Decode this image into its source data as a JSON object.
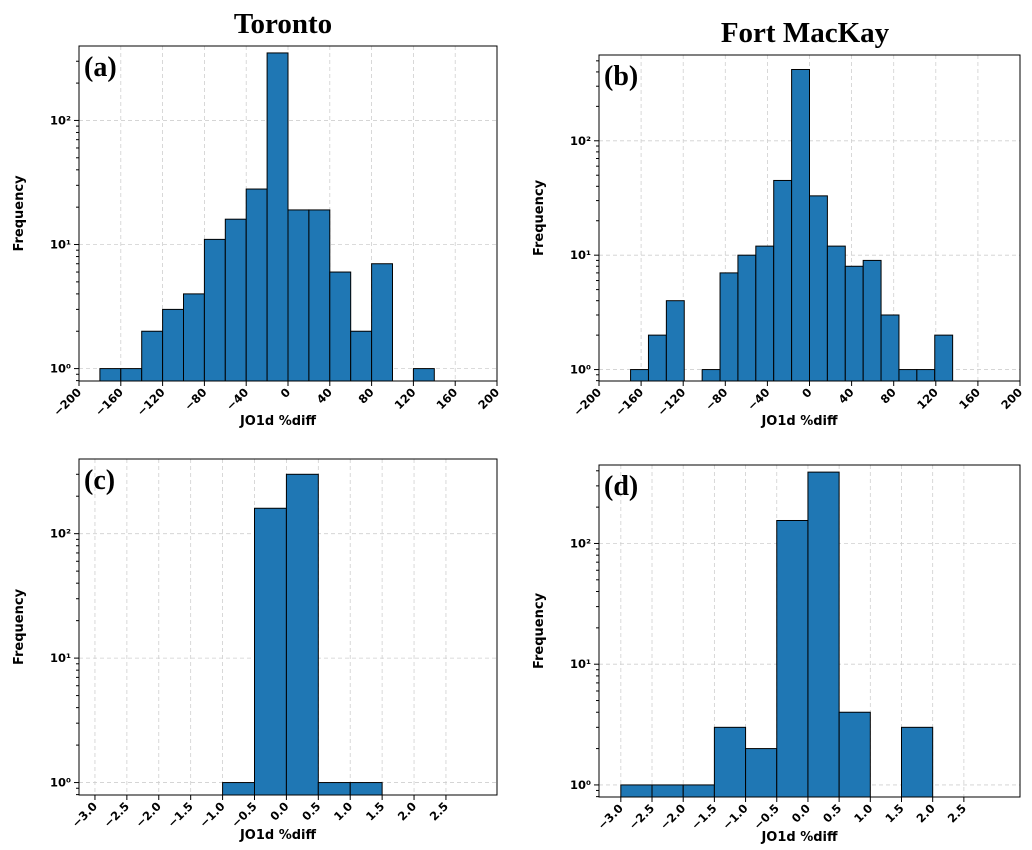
{
  "column_titles": [
    "Toronto",
    "Fort MacKay"
  ],
  "chart_data": [
    {
      "type": "bar",
      "panel_label": "(a)",
      "xlabel": "JO1d %diff",
      "ylabel": "Frequency",
      "y_scale": "log",
      "xlim": [
        -200,
        200
      ],
      "ylim_exp": [
        -0.1,
        2.6
      ],
      "xticks": [
        -200,
        -160,
        -120,
        -80,
        -40,
        0,
        40,
        80,
        120,
        160,
        200
      ],
      "xtick_labels": [
        "−200",
        "−160",
        "−120",
        "−80",
        "−40",
        "0",
        "40",
        "80",
        "120",
        "160",
        "200"
      ],
      "yticks": [
        0,
        1,
        2
      ],
      "ytick_labels": [
        "10⁰",
        "10¹",
        "10²"
      ],
      "grid": true,
      "bins": [
        {
          "x0": -180,
          "x1": -160,
          "count": 1
        },
        {
          "x0": -160,
          "x1": -140,
          "count": 1
        },
        {
          "x0": -140,
          "x1": -120,
          "count": 2
        },
        {
          "x0": -120,
          "x1": -100,
          "count": 3
        },
        {
          "x0": -100,
          "x1": -80,
          "count": 4
        },
        {
          "x0": -80,
          "x1": -60,
          "count": 11
        },
        {
          "x0": -60,
          "x1": -40,
          "count": 16
        },
        {
          "x0": -40,
          "x1": -20,
          "count": 28
        },
        {
          "x0": -20,
          "x1": 0,
          "count": 350
        },
        {
          "x0": 0,
          "x1": 20,
          "count": 19
        },
        {
          "x0": 20,
          "x1": 40,
          "count": 19
        },
        {
          "x0": 40,
          "x1": 60,
          "count": 6
        },
        {
          "x0": 60,
          "x1": 80,
          "count": 2
        },
        {
          "x0": 80,
          "x1": 100,
          "count": 7
        },
        {
          "x0": 120,
          "x1": 140,
          "count": 1
        }
      ]
    },
    {
      "type": "bar",
      "panel_label": "(b)",
      "xlabel": "JO1d %diff",
      "ylabel": "Frequency",
      "y_scale": "log",
      "xlim": [
        -200,
        200
      ],
      "ylim_exp": [
        -0.1,
        2.75
      ],
      "xticks": [
        -200,
        -160,
        -120,
        -80,
        -40,
        0,
        40,
        80,
        120,
        160,
        200
      ],
      "xtick_labels": [
        "−200",
        "−160",
        "−120",
        "−80",
        "−40",
        "0",
        "40",
        "80",
        "120",
        "160",
        "200"
      ],
      "yticks": [
        0,
        1,
        2
      ],
      "ytick_labels": [
        "10⁰",
        "10¹",
        "10²"
      ],
      "grid": true,
      "bins": [
        {
          "x0": -170,
          "x1": -153,
          "count": 1
        },
        {
          "x0": -153,
          "x1": -136,
          "count": 2
        },
        {
          "x0": -136,
          "x1": -119,
          "count": 4
        },
        {
          "x0": -102,
          "x1": -85,
          "count": 1
        },
        {
          "x0": -85,
          "x1": -68,
          "count": 7
        },
        {
          "x0": -68,
          "x1": -51,
          "count": 10
        },
        {
          "x0": -51,
          "x1": -34,
          "count": 12
        },
        {
          "x0": -34,
          "x1": -17,
          "count": 45
        },
        {
          "x0": -17,
          "x1": 0,
          "count": 420
        },
        {
          "x0": 0,
          "x1": 17,
          "count": 33
        },
        {
          "x0": 17,
          "x1": 34,
          "count": 12
        },
        {
          "x0": 34,
          "x1": 51,
          "count": 8
        },
        {
          "x0": 51,
          "x1": 68,
          "count": 9
        },
        {
          "x0": 68,
          "x1": 85,
          "count": 3
        },
        {
          "x0": 85,
          "x1": 102,
          "count": 1
        },
        {
          "x0": 102,
          "x1": 119,
          "count": 1
        },
        {
          "x0": 119,
          "x1": 136,
          "count": 2
        }
      ]
    },
    {
      "type": "bar",
      "panel_label": "(c)",
      "xlabel": "JO1d %diff",
      "ylabel": "Frequency",
      "y_scale": "log",
      "xlim": [
        -3.25,
        3.3
      ],
      "ylim_exp": [
        -0.1,
        2.6
      ],
      "xticks": [
        -3.0,
        -2.5,
        -2.0,
        -1.5,
        -1.0,
        -0.5,
        0.0,
        0.5,
        1.0,
        1.5,
        2.0,
        2.5
      ],
      "xtick_labels": [
        "−3.0",
        "−2.5",
        "−2.0",
        "−1.5",
        "−1.0",
        "−0.5",
        "0.0",
        "0.5",
        "1.0",
        "1.5",
        "2.0",
        "2.5"
      ],
      "yticks": [
        0,
        1,
        2
      ],
      "ytick_labels": [
        "10⁰",
        "10¹",
        "10²"
      ],
      "grid": true,
      "bins": [
        {
          "x0": -1.0,
          "x1": -0.5,
          "count": 1
        },
        {
          "x0": -0.5,
          "x1": 0.0,
          "count": 160
        },
        {
          "x0": 0.0,
          "x1": 0.5,
          "count": 300
        },
        {
          "x0": 0.5,
          "x1": 1.0,
          "count": 1
        },
        {
          "x0": 1.0,
          "x1": 1.5,
          "count": 1
        }
      ]
    },
    {
      "type": "bar",
      "panel_label": "(d)",
      "xlabel": "JO1d %diff",
      "ylabel": "Frequency",
      "y_scale": "log",
      "xlim": [
        -3.35,
        3.4
      ],
      "ylim_exp": [
        -0.1,
        2.65
      ],
      "xticks": [
        -3.0,
        -2.5,
        -2.0,
        -1.5,
        -1.0,
        -0.5,
        0.0,
        0.5,
        1.0,
        1.5,
        2.0,
        2.5
      ],
      "xtick_labels": [
        "−3.0",
        "−2.5",
        "−2.0",
        "−1.5",
        "−1.0",
        "−0.5",
        "0.0",
        "0.5",
        "1.0",
        "1.5",
        "2.0",
        "2.5"
      ],
      "yticks": [
        0,
        1,
        2
      ],
      "ytick_labels": [
        "10⁰",
        "10¹",
        "10²"
      ],
      "grid": true,
      "bins": [
        {
          "x0": -3.0,
          "x1": -2.5,
          "count": 1
        },
        {
          "x0": -2.5,
          "x1": -2.0,
          "count": 1
        },
        {
          "x0": -2.0,
          "x1": -1.5,
          "count": 1
        },
        {
          "x0": -1.5,
          "x1": -1.0,
          "count": 3
        },
        {
          "x0": -1.0,
          "x1": -0.5,
          "count": 2
        },
        {
          "x0": -0.5,
          "x1": 0.0,
          "count": 155
        },
        {
          "x0": 0.0,
          "x1": 0.5,
          "count": 390
        },
        {
          "x0": 0.5,
          "x1": 1.0,
          "count": 4
        },
        {
          "x0": 1.5,
          "x1": 2.0,
          "count": 3
        }
      ]
    }
  ]
}
